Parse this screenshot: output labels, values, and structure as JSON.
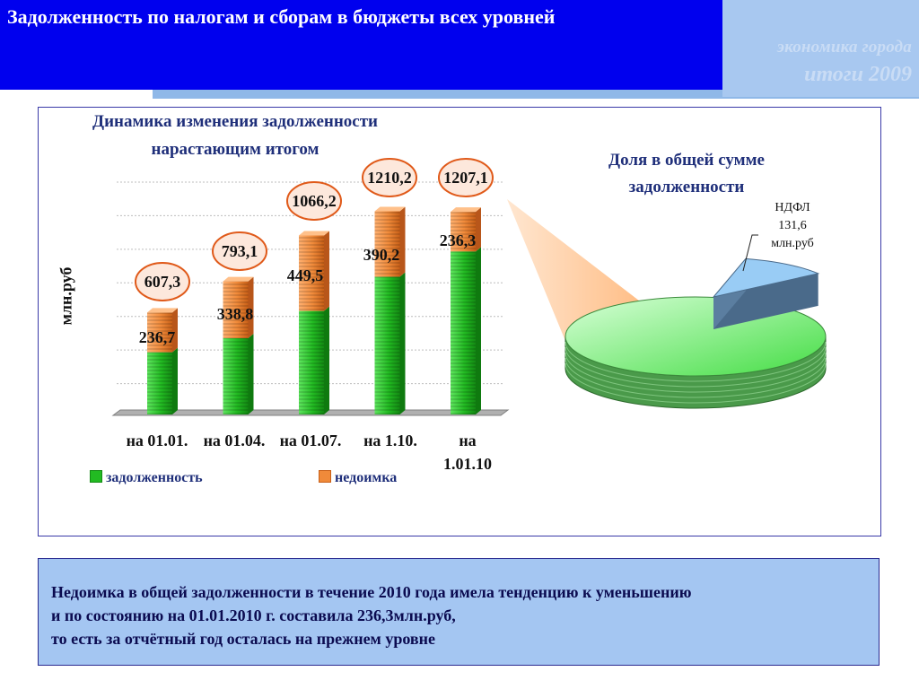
{
  "header": {
    "title": "Задолженность по налогам и сборам в бюджеты всех уровней",
    "brand_line1": "экономика города",
    "brand_line2": "итоги  2009"
  },
  "chart_data": [
    {
      "type": "bar",
      "title": "Динамика изменения задолженности нарастающим итогом",
      "title_line1": "Динамика изменения задолженности",
      "title_line2": "нарастающим итогом",
      "ylabel": "млн.руб",
      "categories": [
        "на 01.01.",
        "на 01.04.",
        "на 01.07.",
        "на 1.10.",
        "на 1.01.10"
      ],
      "stacked": true,
      "series": [
        {
          "name": "задолженность",
          "values": [
            370.6,
            454.3,
            616.7,
            820.0,
            970.8
          ],
          "color": "#22bb22"
        },
        {
          "name": "недоимка",
          "values": [
            236.7,
            338.8,
            449.5,
            390.2,
            236.3
          ],
          "color": "#f08a3a"
        }
      ],
      "totals": [
        607.3,
        793.1,
        1066.2,
        1210.2,
        1207.1
      ],
      "total_labels": [
        "607,3",
        "793,1",
        "1066,2",
        "1210,2",
        "1207,1"
      ],
      "segment_labels": [
        "236,7",
        "338,8",
        "449,5",
        "390,2",
        "236,3"
      ],
      "ylim": [
        0,
        1400
      ],
      "grid": true,
      "legend_position": "bottom"
    },
    {
      "type": "pie",
      "title": "Доля в общей сумме задолженности",
      "title_line1": "Доля в общей сумме",
      "title_line2": "задолженности",
      "slices": [
        {
          "name": "НДФЛ",
          "value": 131.6,
          "color": "#99ccf5"
        },
        {
          "name": "",
          "value": 1075.5,
          "color": "#55dd55"
        }
      ],
      "annotation": {
        "line1": "НДФЛ",
        "line2": "131,6",
        "line3": "млн.руб"
      }
    }
  ],
  "legend": {
    "item1": "задолженность",
    "item2": "недоимка"
  },
  "xtick": {
    "c1": "на 01.01.",
    "c2": "на 01.04.",
    "c3": "на 01.07.",
    "c4": "на 1.10.",
    "c5_line1": "на",
    "c5_line2": "1.01.10"
  },
  "note": {
    "line1": "Недоимка в общей задолженности в течение 2010 года имела тенденцию к уменьшению",
    "line2": "и по состоянию на 01.01.2010 г. составила 236,3млн.руб,",
    "line3": "то есть за отчётный год осталась на прежнем уровне"
  },
  "colors": {
    "header_bg": "#0000ee",
    "brand_bg": "#a8c8f0",
    "text_box_bg": "#a4c6f2",
    "debt_green": "#22bb22",
    "arrears_orange": "#f08a3a",
    "bubble_border": "#e05a1a"
  }
}
